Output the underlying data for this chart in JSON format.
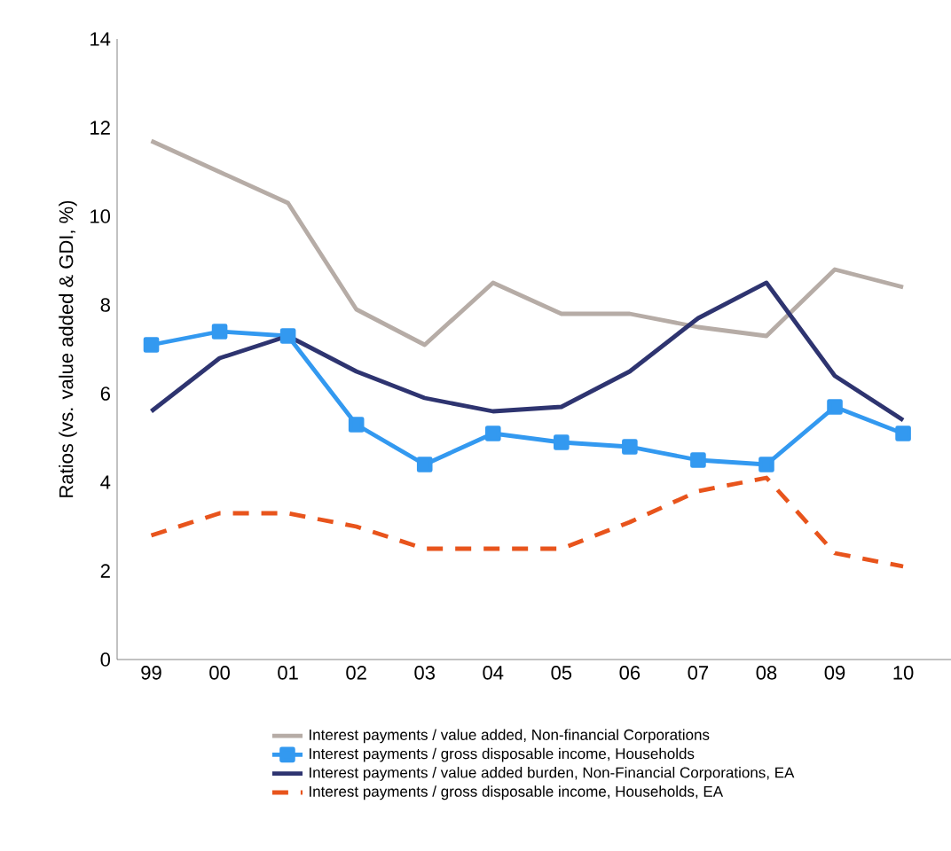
{
  "chart_data": {
    "type": "line",
    "ylabel": "Ratios (vs. value added & GDI, %)",
    "categories": [
      "99",
      "00",
      "01",
      "02",
      "03",
      "04",
      "05",
      "06",
      "07",
      "08",
      "09",
      "10"
    ],
    "ylim": [
      0,
      14
    ],
    "yticks": [
      0,
      2,
      4,
      6,
      8,
      10,
      12,
      14
    ],
    "grid": false,
    "legend": "bottom",
    "series": [
      {
        "name": "Interest payments / value added, Non-financial Corporations",
        "color": "#b6aca6",
        "marker": "none",
        "line_style": "solid",
        "values": [
          11.7,
          11.0,
          10.3,
          7.9,
          7.1,
          8.5,
          7.8,
          7.8,
          7.5,
          7.3,
          8.8,
          8.4
        ]
      },
      {
        "name": "Interest payments / gross disposable income, Households",
        "color": "#3399f0",
        "marker": "square",
        "line_style": "solid",
        "values": [
          7.1,
          7.4,
          7.3,
          5.3,
          4.4,
          5.1,
          4.9,
          4.8,
          4.5,
          4.4,
          5.7,
          5.1
        ]
      },
      {
        "name": "Interest payments / value added burden, Non-Financial Corporations, EA",
        "color": "#2e3470",
        "marker": "none",
        "line_style": "solid",
        "values": [
          5.6,
          6.8,
          7.3,
          6.5,
          5.9,
          5.6,
          5.7,
          6.5,
          7.7,
          8.5,
          6.4,
          5.4
        ]
      },
      {
        "name": "Interest payments / gross disposable income, Households, EA",
        "color": "#e8541c",
        "marker": "none",
        "line_style": "dashed",
        "values": [
          2.8,
          3.3,
          3.3,
          3.0,
          2.5,
          2.5,
          2.5,
          3.1,
          3.8,
          4.1,
          2.4,
          2.1
        ]
      }
    ]
  }
}
